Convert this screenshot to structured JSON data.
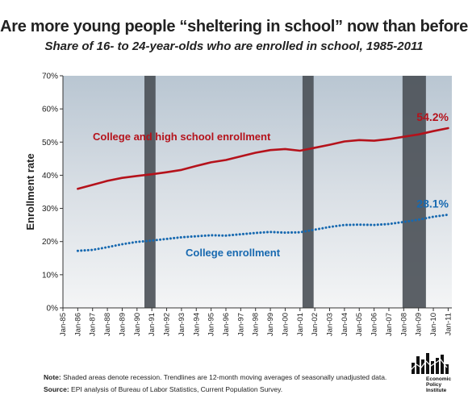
{
  "header": {
    "title": "Are more young people “sheltering in school” now than before",
    "subtitle": "Share of 16- to 24-year-olds who are enrolled in school, 1985-2011"
  },
  "chart_data": {
    "type": "line",
    "ylabel": "Enrollment rate",
    "ylim": [
      0,
      70
    ],
    "y_ticks": [
      "0%",
      "10%",
      "20%",
      "30%",
      "40%",
      "50%",
      "60%",
      "70%"
    ],
    "x_ticks": [
      "Jan-85",
      "Jan-86",
      "Jan-87",
      "Jan-88",
      "Jan-89",
      "Jan-90",
      "Jan-91",
      "Jan-92",
      "Jan-93",
      "Jan-94",
      "Jan-95",
      "Jan-96",
      "Jan-97",
      "Jan-98",
      "Jan-99",
      "Jan-00",
      "Jan-01",
      "Jan-02",
      "Jan-03",
      "Jan-04",
      "Jan-05",
      "Jan-06",
      "Jan-07",
      "Jan-08",
      "Jan-09",
      "Jan-10",
      "Jan-11"
    ],
    "xlim": [
      1985,
      2011.25
    ],
    "recessions": [
      [
        1990.5,
        1991.25
      ],
      [
        2001.17,
        2001.92
      ],
      [
        2007.92,
        2009.5
      ]
    ],
    "series": [
      {
        "name": "College and high school enrollment",
        "color": "#b5121b",
        "style": "solid",
        "end_label": "54.2%",
        "points": [
          [
            1986,
            35.9
          ],
          [
            1987,
            37.1
          ],
          [
            1988,
            38.3
          ],
          [
            1989,
            39.2
          ],
          [
            1990,
            39.8
          ],
          [
            1991,
            40.3
          ],
          [
            1992,
            40.9
          ],
          [
            1993,
            41.6
          ],
          [
            1994,
            42.8
          ],
          [
            1995,
            43.9
          ],
          [
            1996,
            44.6
          ],
          [
            1997,
            45.7
          ],
          [
            1998,
            46.8
          ],
          [
            1999,
            47.6
          ],
          [
            2000,
            47.9
          ],
          [
            2001,
            47.4
          ],
          [
            2002,
            48.3
          ],
          [
            2003,
            49.2
          ],
          [
            2004,
            50.2
          ],
          [
            2005,
            50.6
          ],
          [
            2006,
            50.4
          ],
          [
            2007,
            50.9
          ],
          [
            2008,
            51.6
          ],
          [
            2009,
            52.3
          ],
          [
            2010,
            53.3
          ],
          [
            2011,
            54.2
          ]
        ]
      },
      {
        "name": "College enrollment",
        "color": "#1769b0",
        "style": "dotted",
        "end_label": "28.1%",
        "points": [
          [
            1986,
            17.2
          ],
          [
            1987,
            17.5
          ],
          [
            1988,
            18.3
          ],
          [
            1989,
            19.2
          ],
          [
            1990,
            19.9
          ],
          [
            1991,
            20.3
          ],
          [
            1992,
            20.8
          ],
          [
            1993,
            21.3
          ],
          [
            1994,
            21.6
          ],
          [
            1995,
            21.9
          ],
          [
            1996,
            21.8
          ],
          [
            1997,
            22.2
          ],
          [
            1998,
            22.6
          ],
          [
            1999,
            22.9
          ],
          [
            2000,
            22.7
          ],
          [
            2001,
            22.8
          ],
          [
            2002,
            23.6
          ],
          [
            2003,
            24.4
          ],
          [
            2004,
            25.0
          ],
          [
            2005,
            25.1
          ],
          [
            2006,
            25.0
          ],
          [
            2007,
            25.3
          ],
          [
            2008,
            25.9
          ],
          [
            2009,
            26.6
          ],
          [
            2010,
            27.5
          ],
          [
            2011,
            28.1
          ]
        ]
      }
    ]
  },
  "notes": {
    "note_label": "Note:",
    "note_text": "Shaded areas denote recession. Trendlines are 12-month moving averages of seasonally unadjusted data.",
    "source_label": "Source:",
    "source_text": "EPI analysis  of Bureau of Labor Statistics, Current Population Survey."
  },
  "logo": {
    "text": "Economic Policy Institute",
    "lines": [
      "Economic",
      "Policy",
      "Institute"
    ]
  }
}
